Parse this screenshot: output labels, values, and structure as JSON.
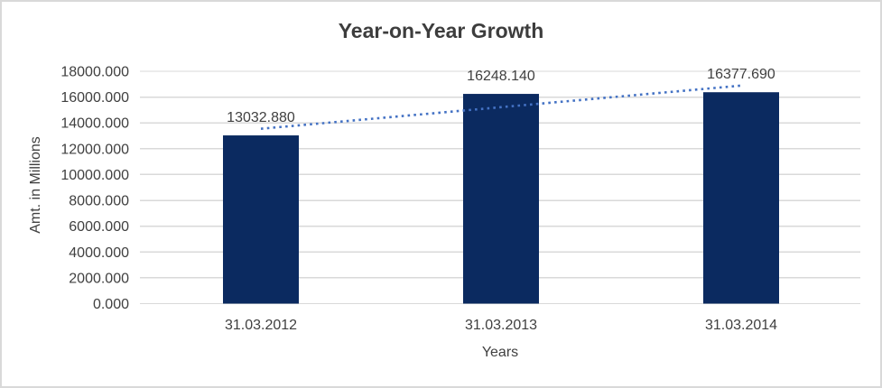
{
  "chart_data": {
    "type": "bar",
    "title": "Year-on-Year Growth",
    "xlabel": "Years",
    "ylabel": "Amt. in Millions",
    "categories": [
      "31.03.2012",
      "31.03.2013",
      "31.03.2014"
    ],
    "values": [
      13032.88,
      16248.14,
      16377.69
    ],
    "data_labels": [
      "13032.880",
      "16248.140",
      "16377.690"
    ],
    "ylim": [
      0,
      18000
    ],
    "ytick_step": 2000,
    "ytick_labels": [
      "0.000",
      "2000.000",
      "4000.000",
      "6000.000",
      "8000.000",
      "10000.000",
      "12000.000",
      "14000.000",
      "16000.000",
      "18000.000"
    ],
    "grid": true,
    "legend": false,
    "trendline": {
      "type": "linear",
      "style": "dotted"
    },
    "colors": {
      "bar": "#0b2a60",
      "trendline": "#4472C4",
      "gridline": "#d9d9d9",
      "axis_text": "#404040",
      "title_text": "#3d3d3d",
      "border": "#d9d9d9",
      "background": "#ffffff"
    }
  }
}
